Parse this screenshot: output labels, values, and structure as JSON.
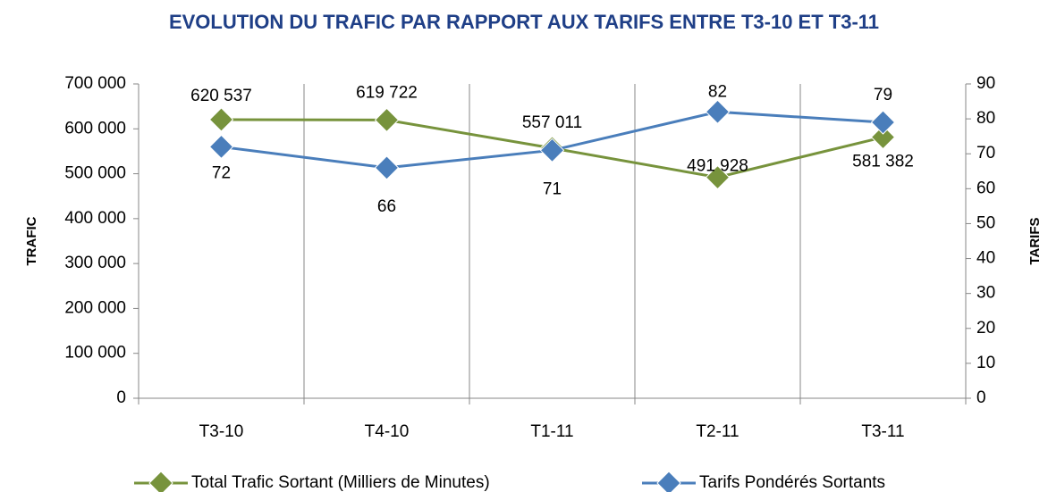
{
  "chart_data": {
    "type": "line",
    "title": "EVOLUTION DU TRAFIC PAR RAPPORT AUX TARIFS ENTRE T3-10 ET T3-11",
    "ylabel": "TRAFIC",
    "y2label": "TARIFS",
    "categories": [
      "T3-10",
      "T4-10",
      "T1-11",
      "T2-11",
      "T3-11"
    ],
    "ylim": [
      0,
      700000
    ],
    "yticks": [
      0,
      {
        "value": 100000,
        "label": "100 000"
      },
      {
        "value": 200000,
        "label": "200 000"
      },
      {
        "value": 300000,
        "label": "300 000"
      },
      {
        "value": 400000,
        "label": "400 000"
      },
      {
        "value": 500000,
        "label": "500 000"
      },
      {
        "value": 600000,
        "label": "600 000"
      },
      {
        "value": 700000,
        "label": "700 000"
      }
    ],
    "y2lim": [
      0,
      90
    ],
    "y2ticks": [
      0,
      10,
      20,
      30,
      40,
      50,
      60,
      70,
      80,
      90
    ],
    "series": [
      {
        "name": "Total Trafic Sortant (Milliers de Minutes)",
        "color": "#77933c",
        "values": [
          620537,
          619722,
          557011,
          491928,
          581382
        ],
        "value_labels": [
          "620 537",
          "619 722",
          "557 011",
          "491 928",
          "581 382"
        ]
      },
      {
        "name": "Tarifs Pondérés Sortants",
        "color": "#4a7ebb",
        "axis": "y2",
        "values": [
          72,
          66,
          71,
          82,
          79
        ]
      }
    ]
  }
}
